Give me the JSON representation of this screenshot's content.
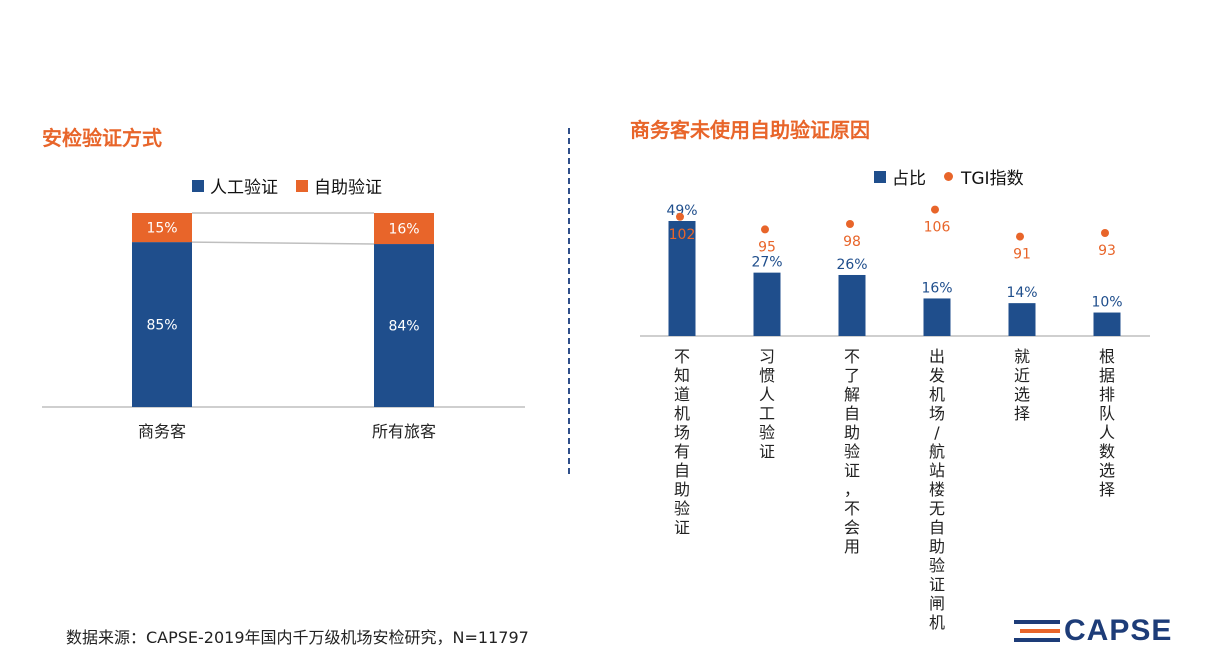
{
  "colors": {
    "primary": "#1F4E8C",
    "accent": "#E8652A",
    "axis": "#BFBFBF"
  },
  "left_title": "安检验证方式",
  "right_title": "商务客未使用自助验证原因",
  "left_legend": [
    "人工验证",
    "自助验证"
  ],
  "right_legend": [
    "占比",
    "TGI指数"
  ],
  "source": "数据来源：CAPSE-2019年国内千万级机场安检研究，N=11797",
  "logo_text": "CAPSE",
  "chart_data": [
    {
      "type": "bar",
      "stacked": true,
      "title": "安检验证方式",
      "categories": [
        "商务客",
        "所有旅客"
      ],
      "series": [
        {
          "name": "人工验证",
          "values": [
            85,
            84
          ],
          "labels": [
            "85%",
            "84%"
          ],
          "color": "#1F4E8C"
        },
        {
          "name": "自助验证",
          "values": [
            15,
            16
          ],
          "labels": [
            "15%",
            "16%"
          ],
          "color": "#E8652A"
        }
      ],
      "ylim": [
        0,
        100
      ],
      "legend": "top"
    },
    {
      "type": "bar",
      "title": "商务客未使用自助验证原因",
      "categories": [
        "不知道机场有自助验证",
        "习惯人工验证",
        "不了解自助验证，不会用",
        "出发机场/航站楼无自助验证闸机",
        "就近选择",
        "根据排队人数选择"
      ],
      "series": [
        {
          "name": "占比",
          "type": "bar",
          "values": [
            49,
            27,
            26,
            16,
            14,
            10
          ],
          "labels": [
            "49%",
            "27%",
            "26%",
            "16%",
            "14%",
            "10%"
          ],
          "color": "#1F4E8C"
        },
        {
          "name": "TGI指数",
          "type": "scatter",
          "values": [
            102,
            95,
            98,
            106,
            91,
            93
          ],
          "labels": [
            "102",
            "95",
            "98",
            "106",
            "91",
            "93"
          ],
          "color": "#E8652A"
        }
      ],
      "legend": "top"
    }
  ]
}
